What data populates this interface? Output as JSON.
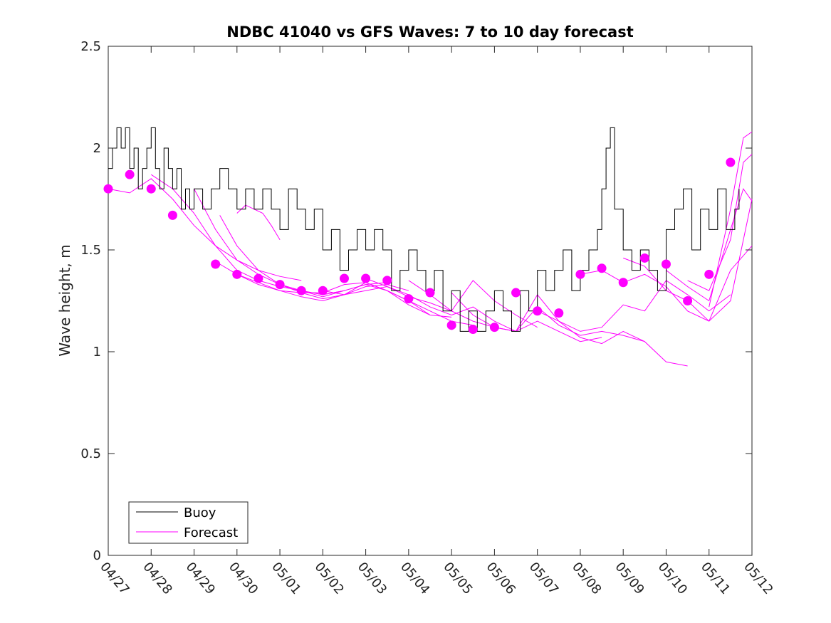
{
  "chart_data": {
    "type": "line",
    "title": "NDBC 41040 vs GFS Waves: 7 to 10 day forecast",
    "xlabel": "",
    "ylabel": "Wave height, m",
    "x_ticks": [
      "04/27",
      "04/28",
      "04/29",
      "04/30",
      "05/01",
      "05/02",
      "05/03",
      "05/04",
      "05/05",
      "05/06",
      "05/07",
      "05/08",
      "05/09",
      "05/10",
      "05/11",
      "05/12"
    ],
    "xlim": [
      0,
      15
    ],
    "ylim": [
      0,
      2.5
    ],
    "y_ticks": [
      0,
      0.5,
      1,
      1.5,
      2,
      2.5
    ],
    "y_tick_labels": [
      "0",
      "0.5",
      "1",
      "1.5",
      "2",
      "2.5"
    ],
    "grid": false,
    "legend": {
      "position": "bottom-left",
      "entries": [
        {
          "label": "Buoy",
          "color": "#000000"
        },
        {
          "label": "Forecast",
          "color": "#ff00ff"
        }
      ]
    },
    "colors": {
      "buoy": "#000000",
      "forecast": "#ff00ff"
    },
    "series": [
      {
        "name": "Buoy",
        "points": [
          [
            0,
            1.9
          ],
          [
            0.1,
            2.0
          ],
          [
            0.2,
            2.1
          ],
          [
            0.3,
            2.0
          ],
          [
            0.4,
            2.1
          ],
          [
            0.5,
            1.9
          ],
          [
            0.6,
            2.0
          ],
          [
            0.7,
            1.8
          ],
          [
            0.8,
            1.9
          ],
          [
            0.9,
            2.0
          ],
          [
            1.0,
            2.1
          ],
          [
            1.1,
            1.9
          ],
          [
            1.2,
            1.8
          ],
          [
            1.3,
            2.0
          ],
          [
            1.4,
            1.9
          ],
          [
            1.5,
            1.8
          ],
          [
            1.6,
            1.9
          ],
          [
            1.7,
            1.7
          ],
          [
            1.8,
            1.8
          ],
          [
            1.9,
            1.7
          ],
          [
            2.0,
            1.8
          ],
          [
            2.2,
            1.7
          ],
          [
            2.4,
            1.8
          ],
          [
            2.6,
            1.9
          ],
          [
            2.8,
            1.8
          ],
          [
            3.0,
            1.7
          ],
          [
            3.2,
            1.8
          ],
          [
            3.4,
            1.7
          ],
          [
            3.6,
            1.8
          ],
          [
            3.8,
            1.7
          ],
          [
            4.0,
            1.6
          ],
          [
            4.2,
            1.8
          ],
          [
            4.4,
            1.7
          ],
          [
            4.6,
            1.6
          ],
          [
            4.8,
            1.7
          ],
          [
            5.0,
            1.5
          ],
          [
            5.2,
            1.6
          ],
          [
            5.4,
            1.4
          ],
          [
            5.6,
            1.5
          ],
          [
            5.8,
            1.6
          ],
          [
            6.0,
            1.5
          ],
          [
            6.2,
            1.6
          ],
          [
            6.4,
            1.5
          ],
          [
            6.6,
            1.3
          ],
          [
            6.8,
            1.4
          ],
          [
            7.0,
            1.5
          ],
          [
            7.2,
            1.4
          ],
          [
            7.4,
            1.3
          ],
          [
            7.6,
            1.4
          ],
          [
            7.8,
            1.2
          ],
          [
            8.0,
            1.3
          ],
          [
            8.2,
            1.1
          ],
          [
            8.4,
            1.2
          ],
          [
            8.6,
            1.1
          ],
          [
            8.8,
            1.2
          ],
          [
            9.0,
            1.3
          ],
          [
            9.2,
            1.2
          ],
          [
            9.4,
            1.1
          ],
          [
            9.6,
            1.3
          ],
          [
            9.8,
            1.2
          ],
          [
            10.0,
            1.4
          ],
          [
            10.2,
            1.3
          ],
          [
            10.4,
            1.4
          ],
          [
            10.6,
            1.5
          ],
          [
            10.8,
            1.3
          ],
          [
            11.0,
            1.4
          ],
          [
            11.2,
            1.5
          ],
          [
            11.4,
            1.6
          ],
          [
            11.5,
            1.8
          ],
          [
            11.6,
            2.0
          ],
          [
            11.7,
            2.1
          ],
          [
            11.8,
            1.7
          ],
          [
            12.0,
            1.5
          ],
          [
            12.2,
            1.4
          ],
          [
            12.4,
            1.5
          ],
          [
            12.6,
            1.4
          ],
          [
            12.8,
            1.3
          ],
          [
            13.0,
            1.6
          ],
          [
            13.2,
            1.7
          ],
          [
            13.4,
            1.8
          ],
          [
            13.6,
            1.5
          ],
          [
            13.8,
            1.7
          ],
          [
            14.0,
            1.6
          ],
          [
            14.2,
            1.8
          ],
          [
            14.4,
            1.6
          ],
          [
            14.6,
            1.7
          ],
          [
            14.7,
            1.8
          ]
        ]
      },
      {
        "name": "Forecast",
        "lines": [
          [
            [
              0,
              1.8
            ],
            [
              0.5,
              1.78
            ],
            [
              1,
              1.85
            ],
            [
              1.5,
              1.75
            ],
            [
              2,
              1.62
            ],
            [
              2.5,
              1.52
            ],
            [
              3,
              1.45
            ],
            [
              3.5,
              1.4
            ],
            [
              4,
              1.37
            ],
            [
              4.5,
              1.35
            ]
          ],
          [
            [
              1,
              1.87
            ],
            [
              1.5,
              1.8
            ],
            [
              2,
              1.68
            ],
            [
              2.5,
              1.52
            ],
            [
              3,
              1.4
            ],
            [
              3.5,
              1.35
            ],
            [
              4,
              1.32
            ],
            [
              4.5,
              1.3
            ],
            [
              5,
              1.28
            ],
            [
              5.5,
              1.3
            ]
          ],
          [
            [
              2,
              1.8
            ],
            [
              2.5,
              1.6
            ],
            [
              3,
              1.45
            ],
            [
              3.5,
              1.38
            ],
            [
              4,
              1.33
            ],
            [
              4.5,
              1.3
            ],
            [
              5,
              1.27
            ],
            [
              5.5,
              1.3
            ],
            [
              6,
              1.33
            ],
            [
              6.5,
              1.34
            ]
          ],
          [
            [
              2.6,
              1.67
            ],
            [
              3,
              1.52
            ],
            [
              3.5,
              1.4
            ],
            [
              4,
              1.33
            ],
            [
              4.5,
              1.29
            ],
            [
              5,
              1.26
            ],
            [
              5.5,
              1.28
            ],
            [
              6,
              1.32
            ],
            [
              6.5,
              1.33
            ],
            [
              7,
              1.3
            ]
          ],
          [
            [
              3,
              1.68
            ],
            [
              3.2,
              1.72
            ],
            [
              3.4,
              1.7
            ],
            [
              3.6,
              1.68
            ],
            [
              3.8,
              1.62
            ],
            [
              4,
              1.55
            ]
          ],
          [
            [
              2.6,
              1.43
            ],
            [
              3,
              1.38
            ],
            [
              3.5,
              1.33
            ],
            [
              4,
              1.3
            ],
            [
              4.5,
              1.29
            ],
            [
              5,
              1.29
            ],
            [
              5.5,
              1.33
            ],
            [
              6,
              1.34
            ],
            [
              6.5,
              1.3
            ],
            [
              7,
              1.25
            ],
            [
              7.5,
              1.18
            ]
          ],
          [
            [
              3.0,
              1.38
            ],
            [
              3.5,
              1.34
            ],
            [
              4,
              1.3
            ],
            [
              4.5,
              1.27
            ],
            [
              5,
              1.25
            ],
            [
              5.5,
              1.28
            ],
            [
              6,
              1.34
            ],
            [
              6.5,
              1.3
            ],
            [
              7,
              1.23
            ],
            [
              7.5,
              1.18
            ],
            [
              8,
              1.17
            ]
          ],
          [
            [
              4.0,
              1.33
            ],
            [
              4.5,
              1.3
            ],
            [
              5,
              1.28
            ],
            [
              5.5,
              1.3
            ],
            [
              6,
              1.33
            ],
            [
              6.5,
              1.3
            ],
            [
              7,
              1.25
            ],
            [
              7.5,
              1.2
            ],
            [
              8,
              1.15
            ],
            [
              8.5,
              1.13
            ]
          ],
          [
            [
              5.0,
              1.3
            ],
            [
              5.5,
              1.28
            ],
            [
              6,
              1.3
            ],
            [
              6.5,
              1.32
            ],
            [
              7,
              1.28
            ],
            [
              7.5,
              1.22
            ],
            [
              8,
              1.18
            ],
            [
              8.5,
              1.22
            ],
            [
              9,
              1.15
            ],
            [
              9.5,
              1.1
            ]
          ],
          [
            [
              6.0,
              1.36
            ],
            [
              6.5,
              1.32
            ],
            [
              7,
              1.27
            ],
            [
              7.5,
              1.24
            ],
            [
              8,
              1.2
            ],
            [
              8.5,
              1.35
            ],
            [
              9,
              1.25
            ],
            [
              9.5,
              1.18
            ],
            [
              10,
              1.12
            ]
          ],
          [
            [
              7.0,
              1.35
            ],
            [
              7.5,
              1.28
            ],
            [
              8,
              1.2
            ],
            [
              8.5,
              1.15
            ],
            [
              9,
              1.12
            ],
            [
              9.5,
              1.1
            ],
            [
              10,
              1.15
            ],
            [
              10.5,
              1.1
            ],
            [
              11,
              1.05
            ],
            [
              11.5,
              1.07
            ]
          ],
          [
            [
              8.0,
              1.29
            ],
            [
              8.5,
              1.18
            ],
            [
              9,
              1.12
            ],
            [
              9.5,
              1.1
            ],
            [
              10,
              1.22
            ],
            [
              10.5,
              1.13
            ],
            [
              11,
              1.08
            ],
            [
              11.5,
              1.1
            ],
            [
              12,
              1.08
            ],
            [
              12.5,
              1.05
            ]
          ],
          [
            [
              9.0,
              1.12
            ],
            [
              9.5,
              1.1
            ],
            [
              10,
              1.28
            ],
            [
              10.5,
              1.15
            ],
            [
              11,
              1.07
            ],
            [
              11.5,
              1.04
            ],
            [
              12,
              1.1
            ],
            [
              12.5,
              1.05
            ],
            [
              13,
              0.95
            ],
            [
              13.5,
              0.93
            ]
          ],
          [
            [
              10.0,
              1.2
            ],
            [
              10.5,
              1.15
            ],
            [
              11,
              1.1
            ],
            [
              11.5,
              1.12
            ],
            [
              12,
              1.23
            ],
            [
              12.5,
              1.2
            ],
            [
              13,
              1.35
            ],
            [
              13.5,
              1.28
            ],
            [
              14,
              1.2
            ],
            [
              14.5,
              1.28
            ]
          ],
          [
            [
              11.0,
              1.38
            ],
            [
              11.5,
              1.4
            ],
            [
              12,
              1.34
            ],
            [
              12.5,
              1.38
            ],
            [
              13,
              1.32
            ],
            [
              13.5,
              1.2
            ],
            [
              14,
              1.15
            ],
            [
              14.5,
              1.4
            ],
            [
              15,
              1.52
            ]
          ],
          [
            [
              12.0,
              1.46
            ],
            [
              12.5,
              1.42
            ],
            [
              13,
              1.3
            ],
            [
              13.5,
              1.25
            ],
            [
              14,
              1.15
            ],
            [
              14.5,
              1.25
            ],
            [
              15,
              1.75
            ]
          ],
          [
            [
              13.0,
              1.4
            ],
            [
              13.5,
              1.32
            ],
            [
              14,
              1.25
            ],
            [
              14.5,
              1.6
            ],
            [
              14.8,
              1.8
            ],
            [
              15,
              1.74
            ]
          ],
          [
            [
              13.5,
              1.35
            ],
            [
              14,
              1.3
            ],
            [
              14.5,
              1.55
            ],
            [
              14.8,
              1.93
            ],
            [
              15,
              1.97
            ]
          ],
          [
            [
              14.0,
              1.22
            ],
            [
              14.5,
              1.7
            ],
            [
              14.8,
              2.05
            ],
            [
              15,
              2.08
            ]
          ]
        ]
      }
    ],
    "forecast_markers": [
      [
        0,
        1.8
      ],
      [
        0.5,
        1.87
      ],
      [
        1,
        1.8
      ],
      [
        1.5,
        1.67
      ],
      [
        2.5,
        1.43
      ],
      [
        3,
        1.38
      ],
      [
        3.5,
        1.36
      ],
      [
        4,
        1.33
      ],
      [
        4.5,
        1.3
      ],
      [
        5,
        1.3
      ],
      [
        5.5,
        1.36
      ],
      [
        6,
        1.36
      ],
      [
        6.5,
        1.35
      ],
      [
        7,
        1.26
      ],
      [
        7.5,
        1.29
      ],
      [
        8,
        1.13
      ],
      [
        8.5,
        1.11
      ],
      [
        9,
        1.12
      ],
      [
        9.5,
        1.29
      ],
      [
        10,
        1.2
      ],
      [
        10.5,
        1.19
      ],
      [
        11,
        1.38
      ],
      [
        11.5,
        1.41
      ],
      [
        12,
        1.34
      ],
      [
        12.5,
        1.46
      ],
      [
        13,
        1.43
      ],
      [
        13.5,
        1.25
      ],
      [
        14,
        1.38
      ],
      [
        14.5,
        1.93
      ]
    ]
  }
}
